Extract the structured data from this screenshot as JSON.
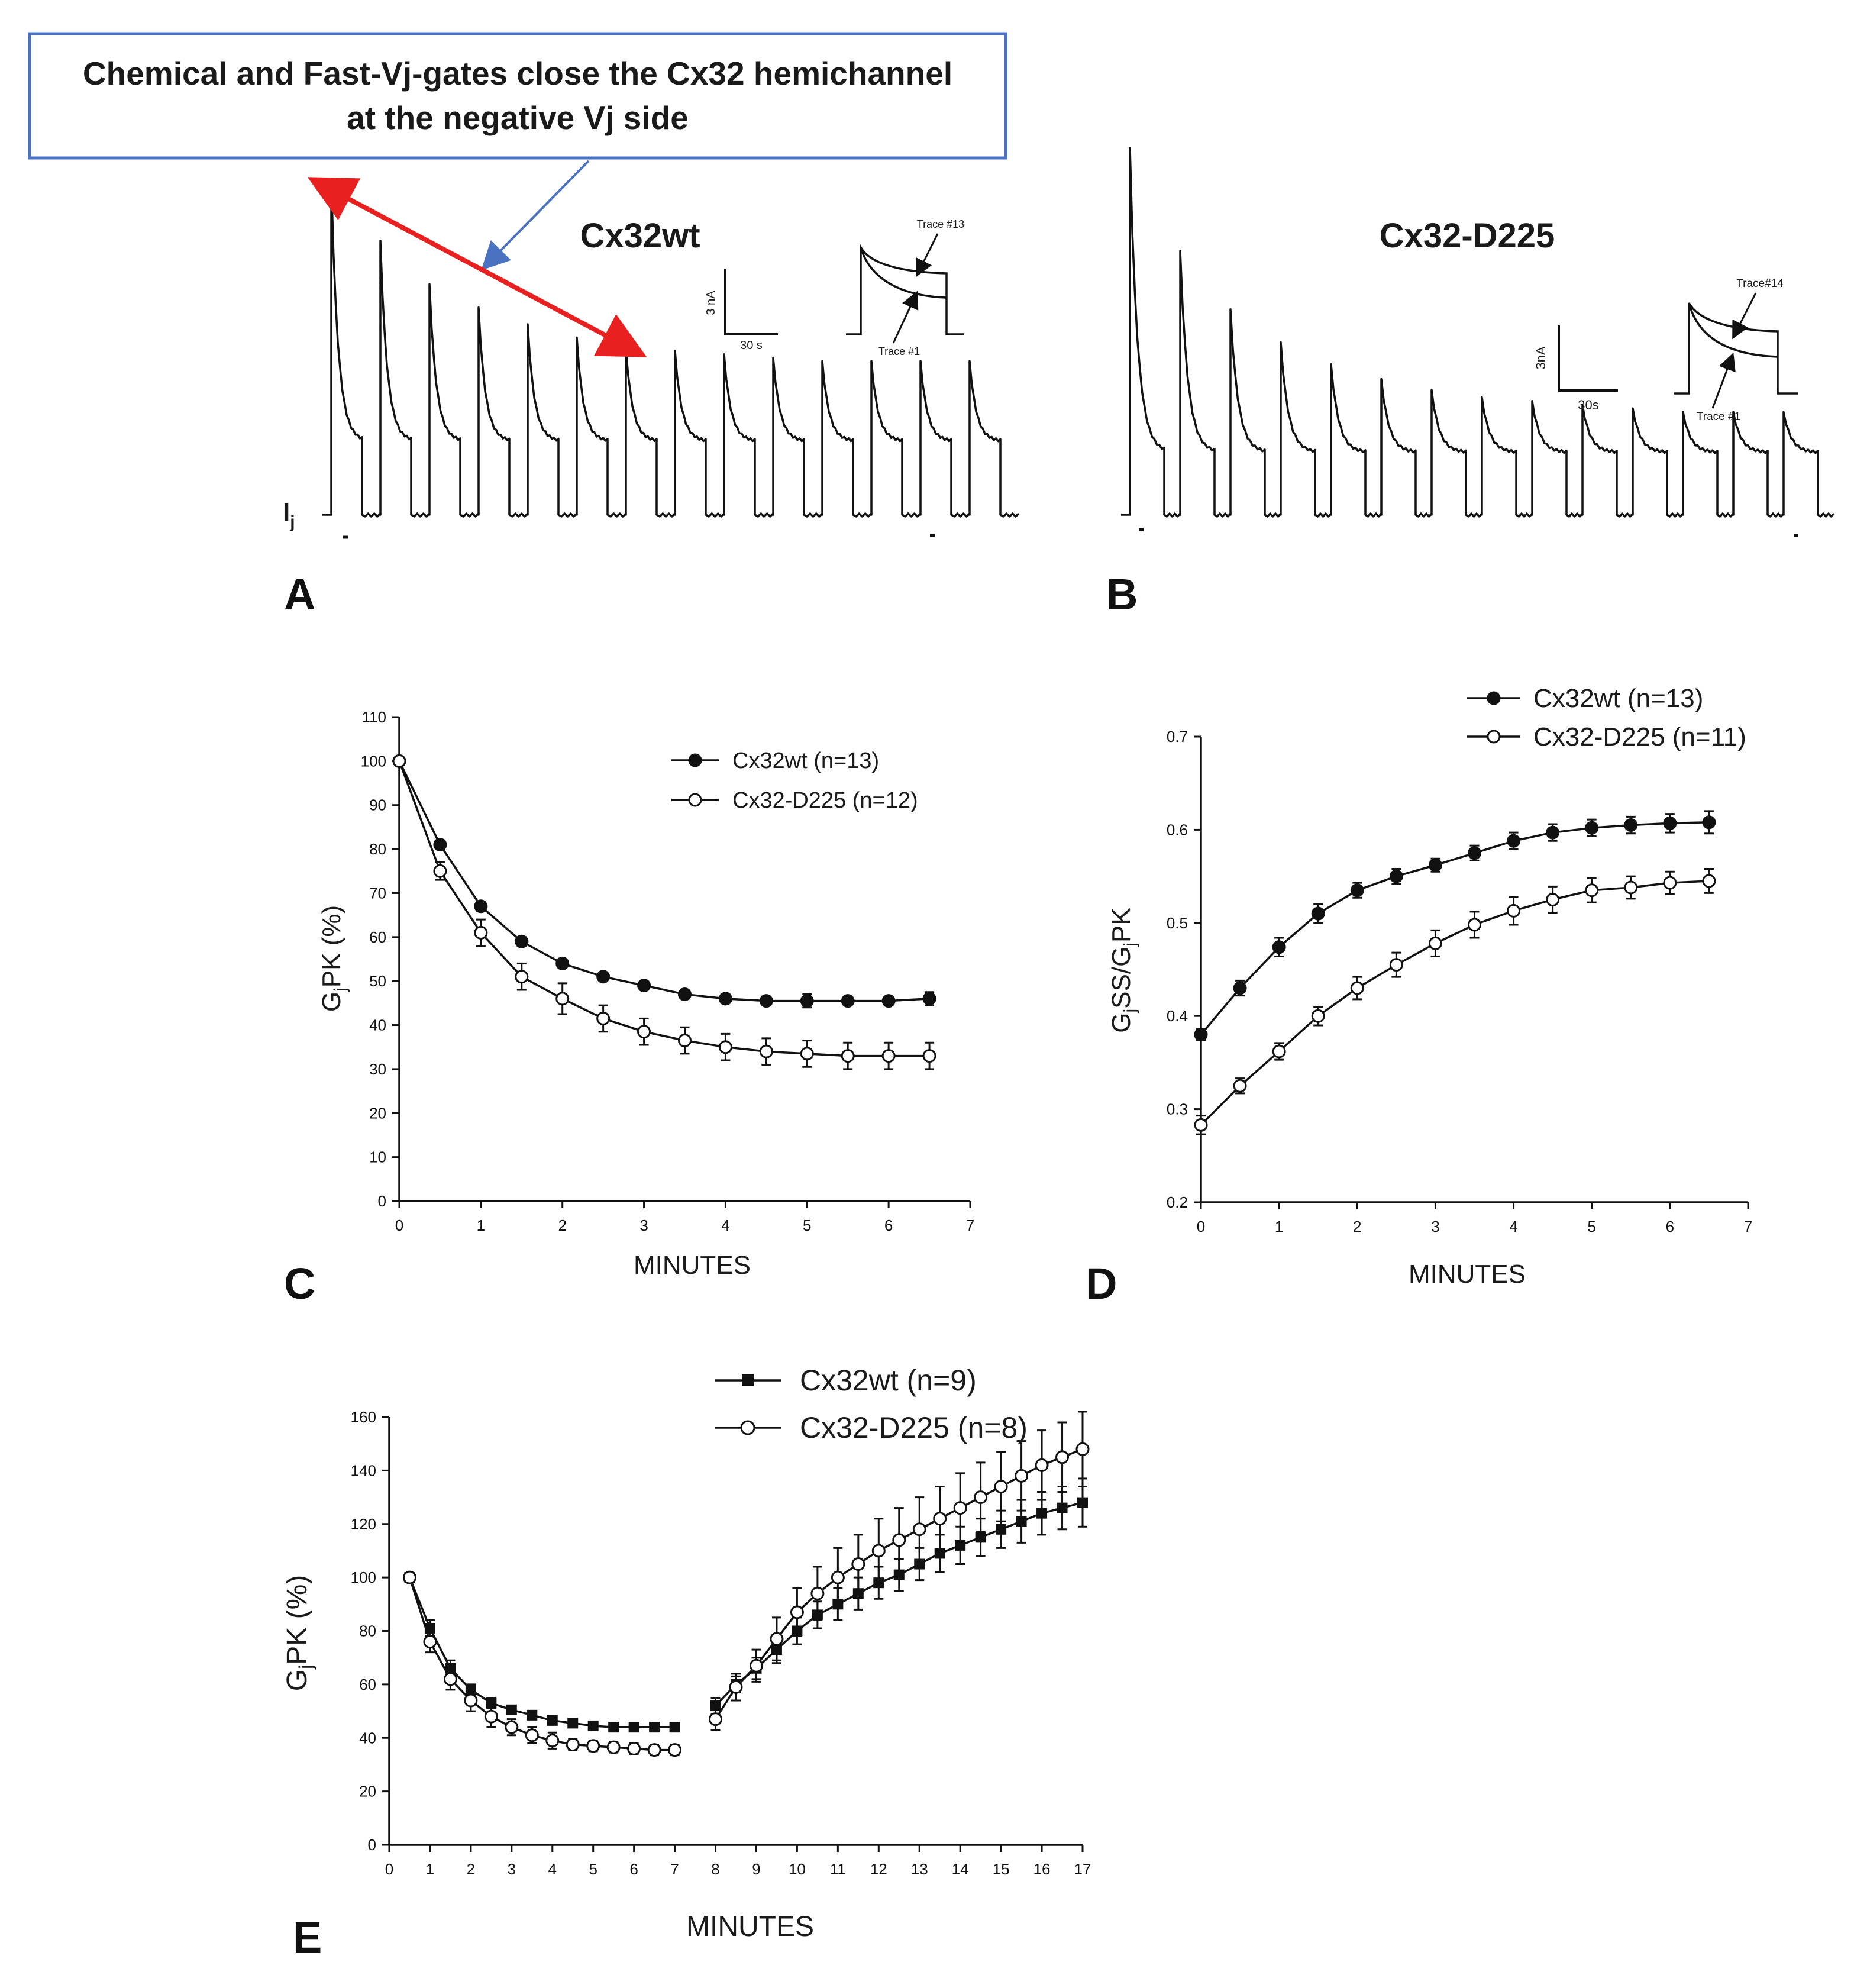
{
  "callout": {
    "line1": "Chemical and Fast-Vj-gates close the Cx32 hemichannel",
    "line2": "at the negative Vj side",
    "color": "#4a72c0",
    "arrow_color": "#e8201f"
  },
  "panels": {
    "A": {
      "letter": "A",
      "title": "Cx32wt",
      "ij_label": "I",
      "ij_sub": "j",
      "scale_y": "3 nA",
      "scale_x": "30 s",
      "inset_top": "Trace #13",
      "inset_bottom": "Trace #1"
    },
    "B": {
      "letter": "B",
      "title": "Cx32-D225",
      "scale_y": "3nA",
      "scale_x": "30s",
      "inset_top": "Trace#14",
      "inset_bottom": "Trace #1"
    },
    "C": {
      "letter": "C"
    },
    "D": {
      "letter": "D"
    },
    "E": {
      "letter": "E"
    }
  },
  "traces": {
    "A": {
      "pulses": 14,
      "peaks": [
        1.0,
        0.82,
        0.69,
        0.62,
        0.57,
        0.53,
        0.5,
        0.49,
        0.48,
        0.47,
        0.46,
        0.46,
        0.46,
        0.46
      ]
    },
    "B": {
      "pulses": 14,
      "peaks": [
        1.0,
        0.72,
        0.56,
        0.47,
        0.41,
        0.37,
        0.34,
        0.32,
        0.31,
        0.3,
        0.29,
        0.28,
        0.28,
        0.28
      ]
    }
  },
  "chart_data": [
    {
      "id": "C",
      "type": "line",
      "xlabel": "MINUTES",
      "ylabel": "GjPK (%)",
      "ylabel_main": "G",
      "ylabel_sub": "j",
      "ylabel_rest": "PK (%)",
      "xlim": [
        0,
        7
      ],
      "ylim": [
        0,
        110
      ],
      "xticks": [
        "0",
        "1",
        "2",
        "3",
        "4",
        "5",
        "6",
        "7"
      ],
      "yticks": [
        "0",
        "10",
        "20",
        "30",
        "40",
        "50",
        "60",
        "70",
        "80",
        "90",
        "100",
        "110"
      ],
      "series": [
        {
          "name": "Cx32wt (n=13)",
          "marker": "filled",
          "x": [
            0,
            0.5,
            1,
            1.5,
            2,
            2.5,
            3,
            3.5,
            4,
            4.5,
            5,
            5.5,
            6,
            6.5
          ],
          "y": [
            100,
            81,
            67,
            59,
            54,
            51,
            49,
            47,
            46,
            45.5,
            45.5,
            45.5,
            45.5,
            46
          ],
          "err": [
            0,
            1,
            1,
            1,
            1,
            1,
            1,
            1,
            1,
            1,
            1.5,
            1,
            1,
            1.5
          ]
        },
        {
          "name": "Cx32-D225 (n=12)",
          "marker": "open",
          "x": [
            0,
            0.5,
            1,
            1.5,
            2,
            2.5,
            3,
            3.5,
            4,
            4.5,
            5,
            5.5,
            6,
            6.5
          ],
          "y": [
            100,
            75,
            61,
            51,
            46,
            41.5,
            38.5,
            36.5,
            35,
            34,
            33.5,
            33,
            33,
            33
          ],
          "err": [
            0,
            2,
            3,
            3,
            3.5,
            3,
            3,
            3,
            3,
            3,
            3,
            3,
            3,
            3
          ]
        }
      ]
    },
    {
      "id": "D",
      "type": "line",
      "xlabel": "MINUTES",
      "ylabel": "GjSS/GjPK",
      "ylabel_a": "G",
      "ylabel_b": "j",
      "ylabel_c": "SS/G",
      "ylabel_d": "j",
      "ylabel_e": "PK",
      "xlim": [
        0,
        7
      ],
      "ylim": [
        0.2,
        0.7
      ],
      "xticks": [
        "0",
        "1",
        "2",
        "3",
        "4",
        "5",
        "6",
        "7"
      ],
      "yticks": [
        "0.2",
        "0.3",
        "0.4",
        "0.5",
        "0.6",
        "0.7"
      ],
      "series": [
        {
          "name": "Cx32wt (n=13)",
          "marker": "filled",
          "x": [
            0,
            0.5,
            1,
            1.5,
            2,
            2.5,
            3,
            3.5,
            4,
            4.5,
            5,
            5.5,
            6,
            6.5
          ],
          "y": [
            0.38,
            0.43,
            0.474,
            0.51,
            0.535,
            0.55,
            0.562,
            0.575,
            0.588,
            0.597,
            0.602,
            0.605,
            0.607,
            0.608
          ],
          "err": [
            0.006,
            0.008,
            0.01,
            0.01,
            0.008,
            0.008,
            0.007,
            0.008,
            0.009,
            0.009,
            0.009,
            0.009,
            0.01,
            0.012
          ]
        },
        {
          "name": "Cx32-D225 (n=11)",
          "marker": "open",
          "x": [
            0,
            0.5,
            1,
            1.5,
            2,
            2.5,
            3,
            3.5,
            4,
            4.5,
            5,
            5.5,
            6,
            6.5
          ],
          "y": [
            0.283,
            0.325,
            0.362,
            0.4,
            0.43,
            0.455,
            0.478,
            0.498,
            0.513,
            0.525,
            0.535,
            0.538,
            0.543,
            0.545
          ],
          "err": [
            0.01,
            0.008,
            0.009,
            0.01,
            0.012,
            0.013,
            0.014,
            0.014,
            0.015,
            0.014,
            0.013,
            0.012,
            0.012,
            0.013
          ]
        }
      ]
    },
    {
      "id": "E",
      "type": "line",
      "xlabel": "MINUTES",
      "ylabel": "GjPK (%)",
      "ylabel_main": "G",
      "ylabel_sub": "j",
      "ylabel_rest": "PK (%)",
      "xlim": [
        0,
        17
      ],
      "ylim": [
        0,
        160
      ],
      "xticks": [
        "0",
        "1",
        "2",
        "3",
        "4",
        "5",
        "6",
        "7",
        "8",
        "9",
        "10",
        "11",
        "12",
        "13",
        "14",
        "15",
        "16",
        "17"
      ],
      "yticks": [
        "0",
        "20",
        "40",
        "60",
        "80",
        "100",
        "120",
        "140",
        "160"
      ],
      "series": [
        {
          "name": "Cx32wt (n=9)",
          "marker": "filled",
          "x": [
            0.5,
            1,
            1.5,
            2,
            2.5,
            3,
            3.5,
            4,
            4.5,
            5,
            5.5,
            6,
            6.5,
            7,
            8,
            8.5,
            9,
            9.5,
            10,
            10.5,
            11,
            11.5,
            12,
            12.5,
            13,
            13.5,
            14,
            14.5,
            15,
            15.5,
            16,
            16.5,
            17
          ],
          "y": [
            100,
            81,
            66,
            58,
            53,
            50.5,
            48.5,
            46.5,
            45.5,
            44.5,
            44,
            44,
            44,
            44,
            52,
            60,
            66,
            73,
            80,
            86,
            90,
            94,
            98,
            101,
            105,
            109,
            112,
            115,
            118,
            121,
            124,
            126,
            128
          ],
          "err": [
            0,
            3,
            3,
            2,
            2,
            1.5,
            1.5,
            1.5,
            1.5,
            1.5,
            1.5,
            1.5,
            1.5,
            1.5,
            3,
            3,
            4,
            5,
            5,
            5,
            6,
            6,
            6,
            6,
            6,
            7,
            7,
            7,
            7,
            8,
            8,
            8,
            9
          ]
        },
        {
          "name": "Cx32-D225 (n=8)",
          "marker": "open",
          "x": [
            0.5,
            1,
            1.5,
            2,
            2.5,
            3,
            3.5,
            4,
            4.5,
            5,
            5.5,
            6,
            6.5,
            7,
            8,
            8.5,
            9,
            9.5,
            10,
            10.5,
            11,
            11.5,
            12,
            12.5,
            13,
            13.5,
            14,
            14.5,
            15,
            15.5,
            16,
            16.5,
            17
          ],
          "y": [
            100,
            76,
            62,
            54,
            48,
            44,
            41,
            39,
            37.5,
            37,
            36.5,
            36,
            35.5,
            35.5,
            47,
            59,
            67,
            77,
            87,
            94,
            100,
            105,
            110,
            114,
            118,
            122,
            126,
            130,
            134,
            138,
            142,
            145,
            148
          ],
          "err": [
            0,
            4,
            4,
            4,
            4,
            3,
            3,
            3,
            2,
            2,
            2,
            2,
            2,
            2,
            4,
            5,
            6,
            8,
            9,
            10,
            11,
            11,
            12,
            12,
            12,
            12,
            13,
            13,
            13,
            13,
            13,
            13,
            14
          ]
        }
      ]
    }
  ]
}
